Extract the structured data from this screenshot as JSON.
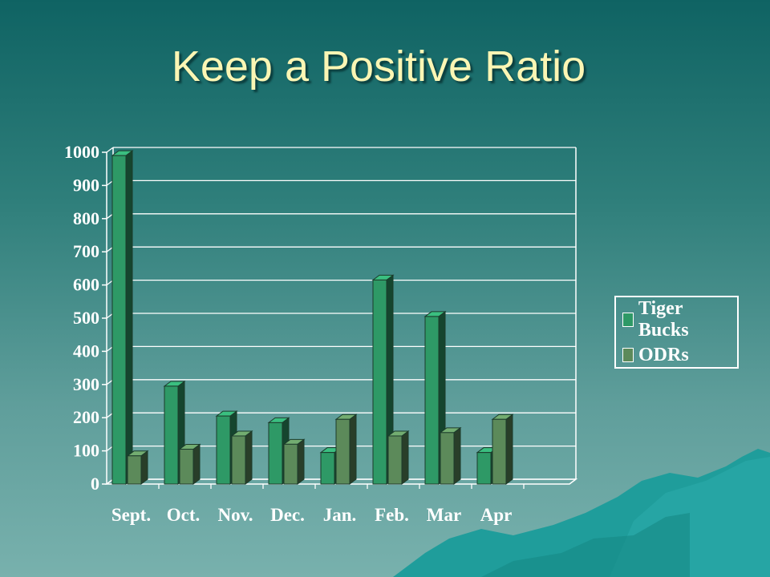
{
  "slide": {
    "title": "Keep a Positive Ratio"
  },
  "chart_data": {
    "type": "bar",
    "categories": [
      "Sept.",
      "Oct.",
      "Nov.",
      "Dec.",
      "Jan.",
      "Feb.",
      "Mar",
      "Apr"
    ],
    "series": [
      {
        "name": "Tiger Bucks",
        "values": [
          990,
          295,
          205,
          185,
          95,
          615,
          505,
          95
        ],
        "color": "#2e9966"
      },
      {
        "name": "ODRs",
        "values": [
          85,
          105,
          145,
          120,
          195,
          145,
          155,
          195
        ],
        "color": "#5c8a5a"
      }
    ],
    "yticks": [
      0,
      100,
      200,
      300,
      400,
      500,
      600,
      700,
      800,
      900,
      1000
    ],
    "ylim": [
      0,
      1000
    ],
    "grid": true,
    "legend_position": "right",
    "title": "",
    "xlabel": "",
    "ylabel": ""
  }
}
